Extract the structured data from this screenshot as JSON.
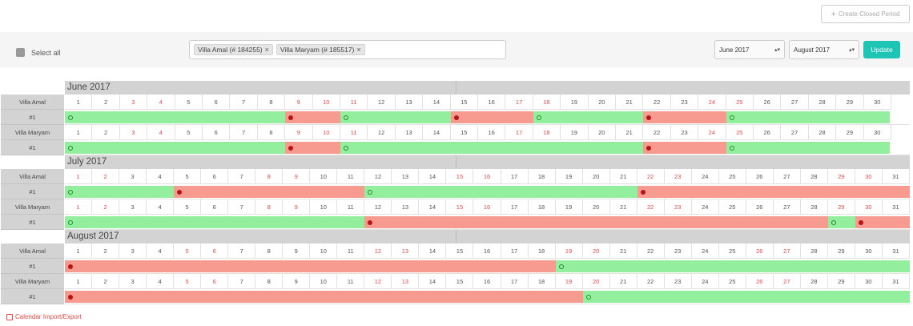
{
  "create_closed_period": "Create Closed Period",
  "select_all": "Select all",
  "villas": [
    "Villa Amal (# 184255)",
    "Villa Maryam (# 185517)"
  ],
  "month_from": "June 2017",
  "month_to": "August 2017",
  "update": "Update",
  "footer_link": "Calendar Import/Export",
  "months": [
    {
      "title": "June 2017",
      "days": 30,
      "weekend_days": [
        3,
        4,
        9,
        10,
        11,
        17,
        18,
        24,
        25
      ],
      "rows": [
        {
          "villa": "Villa Amal",
          "unit": "#1",
          "periods": [
            {
              "from": 1,
              "to": 9,
              "status": "available"
            },
            {
              "from": 9,
              "to": 11,
              "status": "booked"
            },
            {
              "from": 11,
              "to": 15,
              "status": "available"
            },
            {
              "from": 15,
              "to": 18,
              "status": "booked"
            },
            {
              "from": 18,
              "to": 22,
              "status": "available"
            },
            {
              "from": 22,
              "to": 25,
              "status": "booked"
            },
            {
              "from": 25,
              "to": 30.95,
              "status": "available"
            }
          ]
        },
        {
          "villa": "Villa Maryam",
          "unit": "#1",
          "periods": [
            {
              "from": 1,
              "to": 9,
              "status": "available"
            },
            {
              "from": 9,
              "to": 11,
              "status": "booked"
            },
            {
              "from": 11,
              "to": 22,
              "status": "available"
            },
            {
              "from": 22,
              "to": 25,
              "status": "booked"
            },
            {
              "from": 25,
              "to": 30.95,
              "status": "available"
            }
          ]
        }
      ]
    },
    {
      "title": "July 2017",
      "days": 31,
      "weekend_days": [
        1,
        2,
        8,
        9,
        15,
        16,
        22,
        23,
        29,
        30
      ],
      "rows": [
        {
          "villa": "Villa Amal",
          "unit": "#1",
          "periods": [
            {
              "from": 1,
              "to": 5,
              "status": "available"
            },
            {
              "from": 5,
              "to": 12,
              "status": "booked"
            },
            {
              "from": 12,
              "to": 22,
              "status": "available"
            },
            {
              "from": 22,
              "to": 32,
              "status": "booked"
            }
          ]
        },
        {
          "villa": "Villa Maryam",
          "unit": "#1",
          "periods": [
            {
              "from": 1,
              "to": 12,
              "status": "available"
            },
            {
              "from": 12,
              "to": 29,
              "status": "booked"
            },
            {
              "from": 29,
              "to": 30,
              "status": "available"
            },
            {
              "from": 30,
              "to": 32,
              "status": "booked"
            }
          ]
        }
      ]
    },
    {
      "title": "August 2017",
      "days": 31,
      "weekend_days": [
        5,
        6,
        12,
        13,
        19,
        20,
        26,
        27
      ],
      "rows": [
        {
          "villa": "Villa Amal",
          "unit": "#1",
          "periods": [
            {
              "from": 1,
              "to": 19,
              "status": "booked"
            },
            {
              "from": 19,
              "to": 32,
              "status": "available"
            }
          ]
        },
        {
          "villa": "Villa Maryam",
          "unit": "#1",
          "periods": [
            {
              "from": 1,
              "to": 20,
              "status": "booked"
            },
            {
              "from": 20,
              "to": 32,
              "status": "available"
            }
          ]
        }
      ]
    }
  ]
}
